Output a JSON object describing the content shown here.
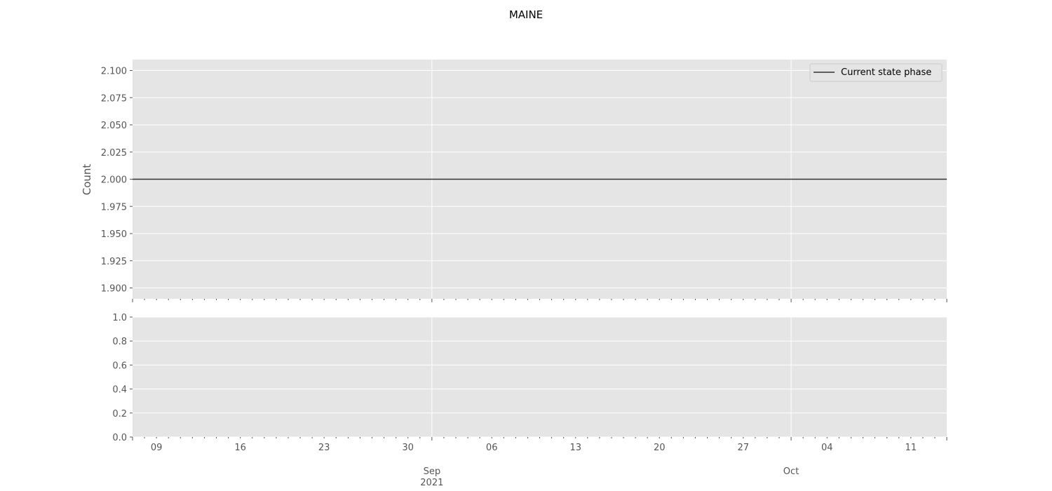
{
  "chart_data": [
    {
      "type": "line",
      "title": "MAINE",
      "ylabel": "Count",
      "xlim": [
        "2021-08-07",
        "2021-10-14"
      ],
      "ylim": [
        1.89,
        2.11
      ],
      "yticks": [
        "1.900",
        "1.925",
        "1.950",
        "1.975",
        "2.000",
        "2.025",
        "2.050",
        "2.075",
        "2.100"
      ],
      "grid": true,
      "legend_position": "top-right",
      "series": [
        {
          "name": "Current state phase",
          "color": "#333333",
          "x": [
            "2021-08-07",
            "2021-10-14"
          ],
          "y": [
            2,
            2
          ]
        }
      ]
    },
    {
      "type": "line",
      "xlim": [
        "2021-08-07",
        "2021-10-14"
      ],
      "ylim": [
        0,
        1
      ],
      "yticks": [
        "0.0",
        "0.2",
        "0.4",
        "0.6",
        "0.8",
        "1.0"
      ],
      "grid": true,
      "xticks_minor": [
        "09",
        "16",
        "23",
        "30",
        "06",
        "13",
        "20",
        "27",
        "04",
        "11"
      ],
      "xticks_major": [
        {
          "date": "2021-09-01",
          "label": "Sep",
          "sublabel": "2021"
        },
        {
          "date": "2021-10-01",
          "label": "Oct",
          "sublabel": ""
        }
      ],
      "series": []
    }
  ]
}
